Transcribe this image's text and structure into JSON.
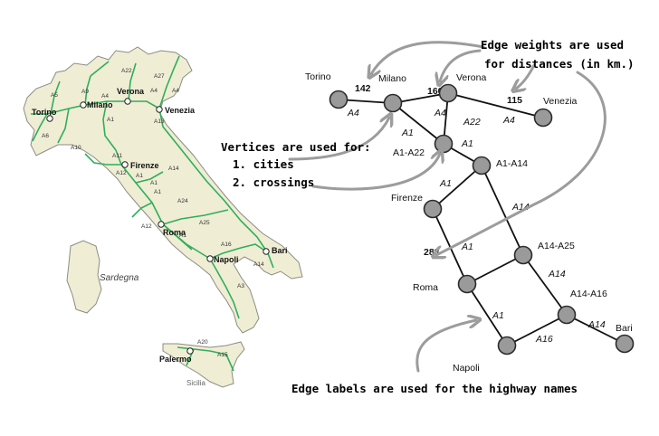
{
  "colors": {
    "land": "#efedd4",
    "coast": "#8c8c84",
    "road": "#2fae5d",
    "node_fill": "#9a9a9a",
    "node_stroke": "#2b2b2b",
    "arrow": "#9c9c9c"
  },
  "map": {
    "island_label_sardegna": "Sardegna",
    "island_label_sicilia": "Sicilia",
    "cities": [
      {
        "key": "torino",
        "label": "Torino"
      },
      {
        "key": "milano",
        "label": "Milano"
      },
      {
        "key": "verona",
        "label": "Verona"
      },
      {
        "key": "venezia",
        "label": "Venezia"
      },
      {
        "key": "firenze",
        "label": "Firenze"
      },
      {
        "key": "roma",
        "label": "Roma"
      },
      {
        "key": "napoli",
        "label": "Napoli"
      },
      {
        "key": "bari",
        "label": "Bari"
      },
      {
        "key": "palermo",
        "label": "Palermo"
      }
    ],
    "highway_labels": [
      "A5",
      "A9",
      "A4",
      "A22",
      "A27",
      "A4",
      "A4",
      "A6",
      "A1",
      "A13",
      "A10",
      "A11",
      "A1",
      "A12",
      "A14",
      "A1",
      "A1",
      "A24",
      "A25",
      "A12",
      "A1",
      "A16",
      "A14",
      "A3",
      "A20",
      "A15"
    ]
  },
  "graph": {
    "nodes": [
      {
        "key": "torino",
        "label": "Torino"
      },
      {
        "key": "milano",
        "label": "Milano"
      },
      {
        "key": "verona",
        "label": "Verona"
      },
      {
        "key": "venezia",
        "label": "Venezia"
      },
      {
        "key": "a1a22",
        "label": "A1-A22"
      },
      {
        "key": "a1a14",
        "label": "A1-A14"
      },
      {
        "key": "firenze",
        "label": "Firenze"
      },
      {
        "key": "roma",
        "label": "Roma"
      },
      {
        "key": "a14a25",
        "label": "A14-A25"
      },
      {
        "key": "a14a16",
        "label": "A14-A16"
      },
      {
        "key": "napoli",
        "label": "Napoli"
      },
      {
        "key": "bari",
        "label": "Bari"
      }
    ],
    "edges": [
      {
        "from": "torino",
        "to": "milano",
        "label": "A4",
        "weight": "142"
      },
      {
        "from": "milano",
        "to": "verona",
        "label": "A4",
        "weight": "160"
      },
      {
        "from": "verona",
        "to": "venezia",
        "label": "A4",
        "weight": "115"
      },
      {
        "from": "milano",
        "to": "a1a22",
        "label": "A1",
        "weight": ""
      },
      {
        "from": "verona",
        "to": "a1a22",
        "label": "A22",
        "weight": ""
      },
      {
        "from": "a1a22",
        "to": "a1a14",
        "label": "A1",
        "weight": ""
      },
      {
        "from": "a1a14",
        "to": "firenze",
        "label": "A1",
        "weight": ""
      },
      {
        "from": "a1a14",
        "to": "a14a25",
        "label": "A14",
        "weight": ""
      },
      {
        "from": "firenze",
        "to": "roma",
        "label": "A1",
        "weight": "283"
      },
      {
        "from": "a14a25",
        "to": "roma",
        "label": "",
        "weight": ""
      },
      {
        "from": "a14a25",
        "to": "a14a16",
        "label": "A14",
        "weight": ""
      },
      {
        "from": "roma",
        "to": "napoli",
        "label": "A1",
        "weight": ""
      },
      {
        "from": "napoli",
        "to": "a14a16",
        "label": "A16",
        "weight": ""
      },
      {
        "from": "a14a16",
        "to": "bari",
        "label": "A14",
        "weight": ""
      }
    ]
  },
  "annotations": {
    "weights_line1": "Edge weights are used",
    "weights_line2": "for distances (in km.)",
    "vertices_line1": "Vertices are used for:",
    "vertices_item1": "1. cities",
    "vertices_item2": "2. crossings",
    "edge_labels": "Edge labels are used for the highway names"
  }
}
